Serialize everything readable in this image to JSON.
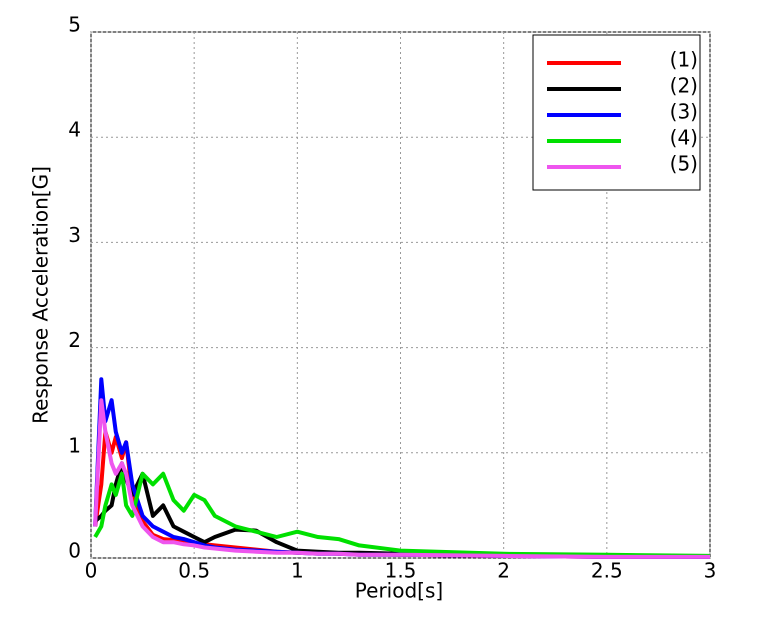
{
  "chart_data": {
    "type": "line",
    "xlabel": "Period[s]",
    "ylabel": "Response Acceleration[G]",
    "x": [
      0.02,
      0.05,
      0.07,
      0.1,
      0.12,
      0.15,
      0.17,
      0.2,
      0.25,
      0.3,
      0.35,
      0.4,
      0.45,
      0.5,
      0.55,
      0.6,
      0.7,
      0.8,
      0.9,
      1.0,
      1.1,
      1.2,
      1.3,
      1.5,
      2.0,
      2.5,
      3.0
    ],
    "series": [
      {
        "name": "(1)",
        "color": "#ff0000",
        "values": [
          0.3,
          0.7,
          1.2,
          1.0,
          1.15,
          0.95,
          1.1,
          0.6,
          0.35,
          0.22,
          0.18,
          0.17,
          0.15,
          0.14,
          0.13,
          0.12,
          0.1,
          0.08,
          0.06,
          0.05,
          0.05,
          0.04,
          0.04,
          0.03,
          0.02,
          0.01,
          0.01
        ]
      },
      {
        "name": "(2)",
        "color": "#000000",
        "values": [
          0.35,
          0.4,
          0.45,
          0.5,
          0.7,
          0.9,
          0.75,
          0.6,
          0.8,
          0.4,
          0.5,
          0.3,
          0.25,
          0.2,
          0.15,
          0.2,
          0.27,
          0.26,
          0.15,
          0.07,
          0.06,
          0.05,
          0.05,
          0.04,
          0.03,
          0.02,
          0.01
        ]
      },
      {
        "name": "(3)",
        "color": "#0000ff",
        "values": [
          0.3,
          1.7,
          1.3,
          1.5,
          1.2,
          1.0,
          1.1,
          0.7,
          0.4,
          0.3,
          0.25,
          0.2,
          0.18,
          0.15,
          0.12,
          0.1,
          0.08,
          0.07,
          0.06,
          0.05,
          0.04,
          0.04,
          0.03,
          0.03,
          0.02,
          0.01,
          0.01
        ]
      },
      {
        "name": "(4)",
        "color": "#00e000",
        "values": [
          0.2,
          0.3,
          0.5,
          0.7,
          0.6,
          0.8,
          0.5,
          0.4,
          0.8,
          0.7,
          0.8,
          0.55,
          0.45,
          0.6,
          0.55,
          0.4,
          0.3,
          0.25,
          0.2,
          0.25,
          0.2,
          0.18,
          0.12,
          0.07,
          0.04,
          0.03,
          0.02
        ]
      },
      {
        "name": "(5)",
        "color": "#ee55ee",
        "values": [
          0.3,
          1.5,
          1.2,
          0.9,
          0.8,
          0.9,
          0.8,
          0.5,
          0.3,
          0.2,
          0.15,
          0.15,
          0.13,
          0.12,
          0.1,
          0.09,
          0.07,
          0.06,
          0.05,
          0.05,
          0.04,
          0.04,
          0.03,
          0.03,
          0.02,
          0.01,
          0.01
        ]
      }
    ],
    "xlim": [
      0,
      3
    ],
    "ylim": [
      0,
      5
    ],
    "xticks": [
      0,
      0.5,
      1,
      1.5,
      2,
      2.5,
      3
    ],
    "yticks": [
      0,
      1,
      2,
      3,
      4,
      5
    ],
    "grid": true,
    "legend": "upper right"
  }
}
